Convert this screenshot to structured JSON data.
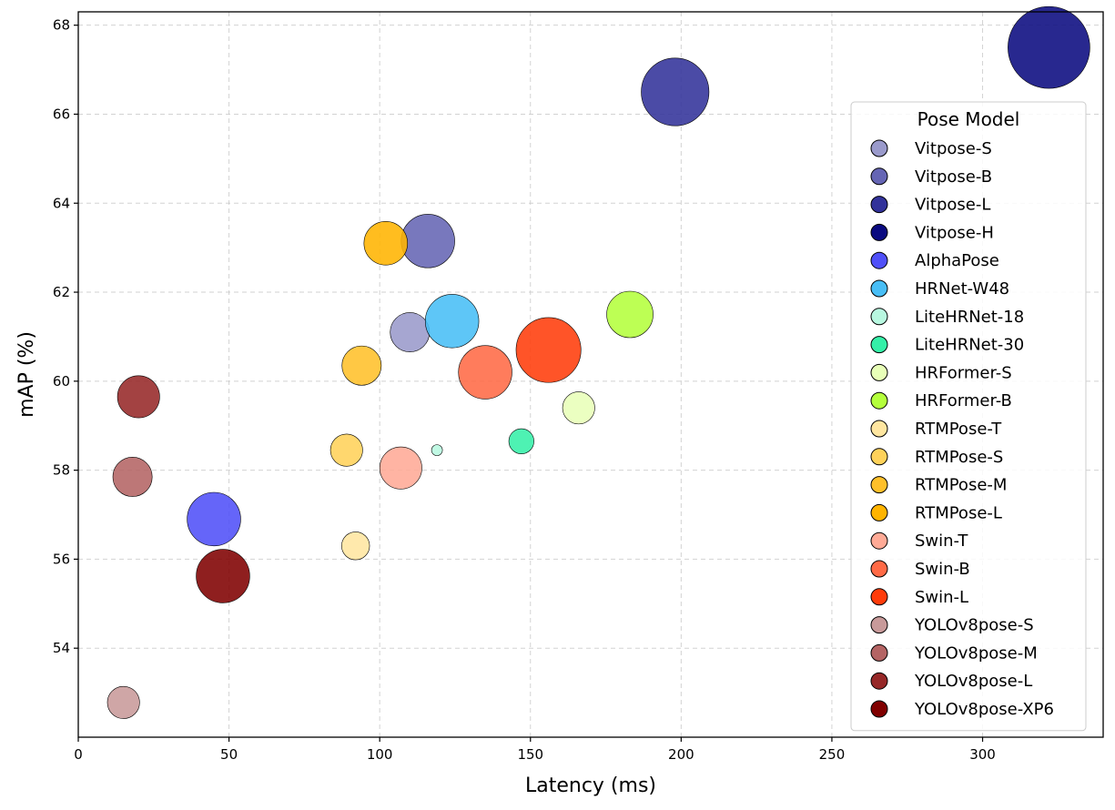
{
  "chart_data": {
    "type": "scatter",
    "title": "",
    "xlabel": "Latency (ms)",
    "ylabel": "mAP (%)",
    "xlim": [
      0,
      340
    ],
    "ylim": [
      52.0,
      68.3
    ],
    "xticks": [
      0,
      50,
      100,
      150,
      200,
      250,
      300
    ],
    "yticks": [
      54,
      56,
      58,
      60,
      62,
      64,
      66,
      68
    ],
    "grid": true,
    "legend_title": "Pose Model",
    "legend_position": "right",
    "series": [
      {
        "name": "Vitpose-S",
        "color": "#9a9acb",
        "points": [
          {
            "x": 110,
            "y": 61.1,
            "size": 2
          }
        ]
      },
      {
        "name": "Vitpose-B",
        "color": "#6565b4",
        "points": [
          {
            "x": 116,
            "y": 63.15,
            "size": 3
          }
        ]
      },
      {
        "name": "Vitpose-L",
        "color": "#32329a",
        "points": [
          {
            "x": 198,
            "y": 66.5,
            "size": 4
          }
        ]
      },
      {
        "name": "Vitpose-H",
        "color": "#0a0a80",
        "points": [
          {
            "x": 322,
            "y": 67.5,
            "size": 5
          }
        ]
      },
      {
        "name": "AlphaPose",
        "color": "#5050f8",
        "points": [
          {
            "x": 45,
            "y": 56.9,
            "size": 3
          }
        ]
      },
      {
        "name": "HRNet-W48",
        "color": "#48bef6",
        "points": [
          {
            "x": 124,
            "y": 61.35,
            "size": 3
          }
        ]
      },
      {
        "name": "LiteHRNet-18",
        "color": "#b8f8e0",
        "points": [
          {
            "x": 119,
            "y": 58.45,
            "size": 0
          }
        ]
      },
      {
        "name": "LiteHRNet-30",
        "color": "#35f0a8",
        "points": [
          {
            "x": 147,
            "y": 58.65,
            "size": 1
          }
        ]
      },
      {
        "name": "HRFormer-S",
        "color": "#e8ffb8",
        "points": [
          {
            "x": 166,
            "y": 59.4,
            "size": 1.5
          }
        ]
      },
      {
        "name": "HRFormer-B",
        "color": "#b4ff3c",
        "points": [
          {
            "x": 183,
            "y": 61.5,
            "size": 2.5
          }
        ]
      },
      {
        "name": "RTMPose-T",
        "color": "#ffe6a0",
        "points": [
          {
            "x": 92,
            "y": 56.3,
            "size": 1.2
          }
        ]
      },
      {
        "name": "RTMPose-S",
        "color": "#ffd25a",
        "points": [
          {
            "x": 89,
            "y": 58.45,
            "size": 1.5
          }
        ]
      },
      {
        "name": "RTMPose-M",
        "color": "#ffc02a",
        "points": [
          {
            "x": 94,
            "y": 60.35,
            "size": 2
          }
        ]
      },
      {
        "name": "RTMPose-L",
        "color": "#ffb400",
        "points": [
          {
            "x": 102,
            "y": 63.1,
            "size": 2.3
          }
        ]
      },
      {
        "name": "Swin-T",
        "color": "#ffaa96",
        "points": [
          {
            "x": 107,
            "y": 58.05,
            "size": 2.2
          }
        ]
      },
      {
        "name": "Swin-B",
        "color": "#ff6a46",
        "points": [
          {
            "x": 135,
            "y": 60.2,
            "size": 3
          }
        ]
      },
      {
        "name": "Swin-L",
        "color": "#ff3c0a",
        "points": [
          {
            "x": 156,
            "y": 60.7,
            "size": 3.8
          }
        ]
      },
      {
        "name": "YOLOv8pose-S",
        "color": "#c89a9a",
        "points": [
          {
            "x": 15,
            "y": 52.78,
            "size": 1.5
          }
        ]
      },
      {
        "name": "YOLOv8pose-M",
        "color": "#b46464",
        "points": [
          {
            "x": 18,
            "y": 57.85,
            "size": 2
          }
        ]
      },
      {
        "name": "YOLOv8pose-L",
        "color": "#962828",
        "points": [
          {
            "x": 20,
            "y": 59.65,
            "size": 2.2
          }
        ]
      },
      {
        "name": "YOLOv8pose-XP6",
        "color": "#800000",
        "points": [
          {
            "x": 48,
            "y": 55.62,
            "size": 3
          }
        ]
      }
    ]
  }
}
